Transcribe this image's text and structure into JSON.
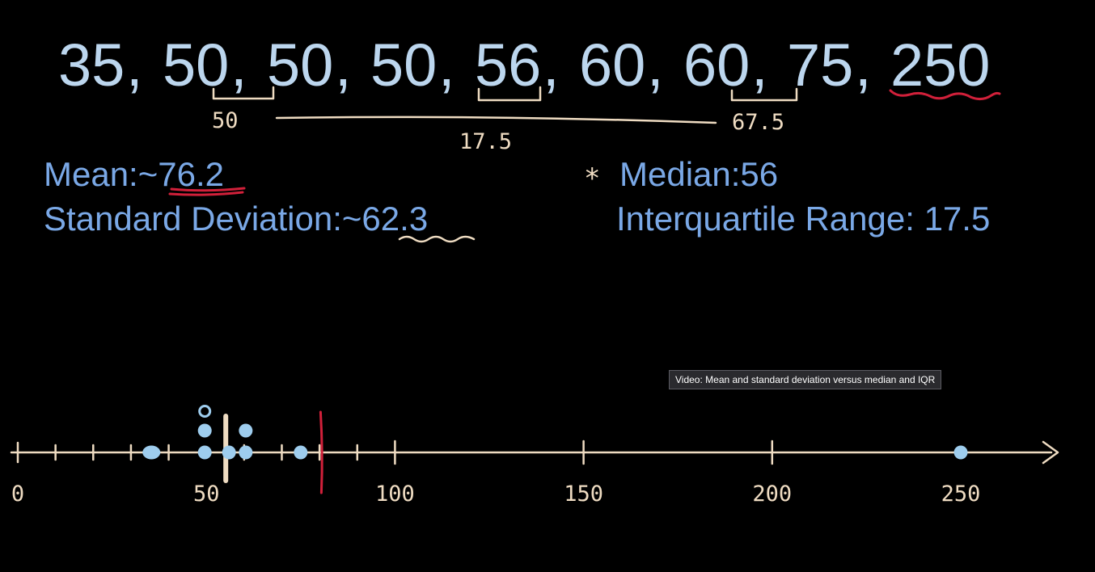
{
  "dataset": {
    "values": [
      "35",
      "50",
      "50",
      "50",
      "56",
      "60",
      "60",
      "75",
      "250"
    ]
  },
  "annotations": {
    "q1_label": "50",
    "q3_label": "67.5",
    "iqr_label": "17.5"
  },
  "stats": {
    "mean_label": "Mean:",
    "mean_value": "~76.2",
    "sd_label": "Standard Deviation:",
    "sd_value": "~62.3",
    "median_label": "Median:",
    "median_value": "56",
    "iqr_text": "Interquartile Range: 17.5",
    "asterisk": "*"
  },
  "number_line": {
    "min": 0,
    "max": 250,
    "major_ticks": [
      100,
      150,
      200
    ],
    "minor_ticks": [
      10,
      20,
      30,
      40,
      60,
      70,
      80,
      90
    ],
    "tick_labels": [
      {
        "value": 0,
        "text": "0"
      },
      {
        "value": 50,
        "text": "50"
      },
      {
        "value": 100,
        "text": "100"
      },
      {
        "value": 150,
        "text": "150"
      },
      {
        "value": 200,
        "text": "200"
      },
      {
        "value": 250,
        "text": "250"
      }
    ],
    "points": [
      35,
      50,
      50,
      50,
      56,
      60,
      60,
      75,
      250
    ],
    "median_marker": 56,
    "mean_marker": 76.2
  },
  "colors": {
    "dataset_text": "#bcd6ee",
    "stats_text": "#7aa8e6",
    "chalk": "#efdcc2",
    "dots": "#9ecdee",
    "red_marker": "#d1203a",
    "background": "#000000"
  },
  "tooltip": {
    "text": "Video: Mean and standard deviation versus median and IQR"
  }
}
